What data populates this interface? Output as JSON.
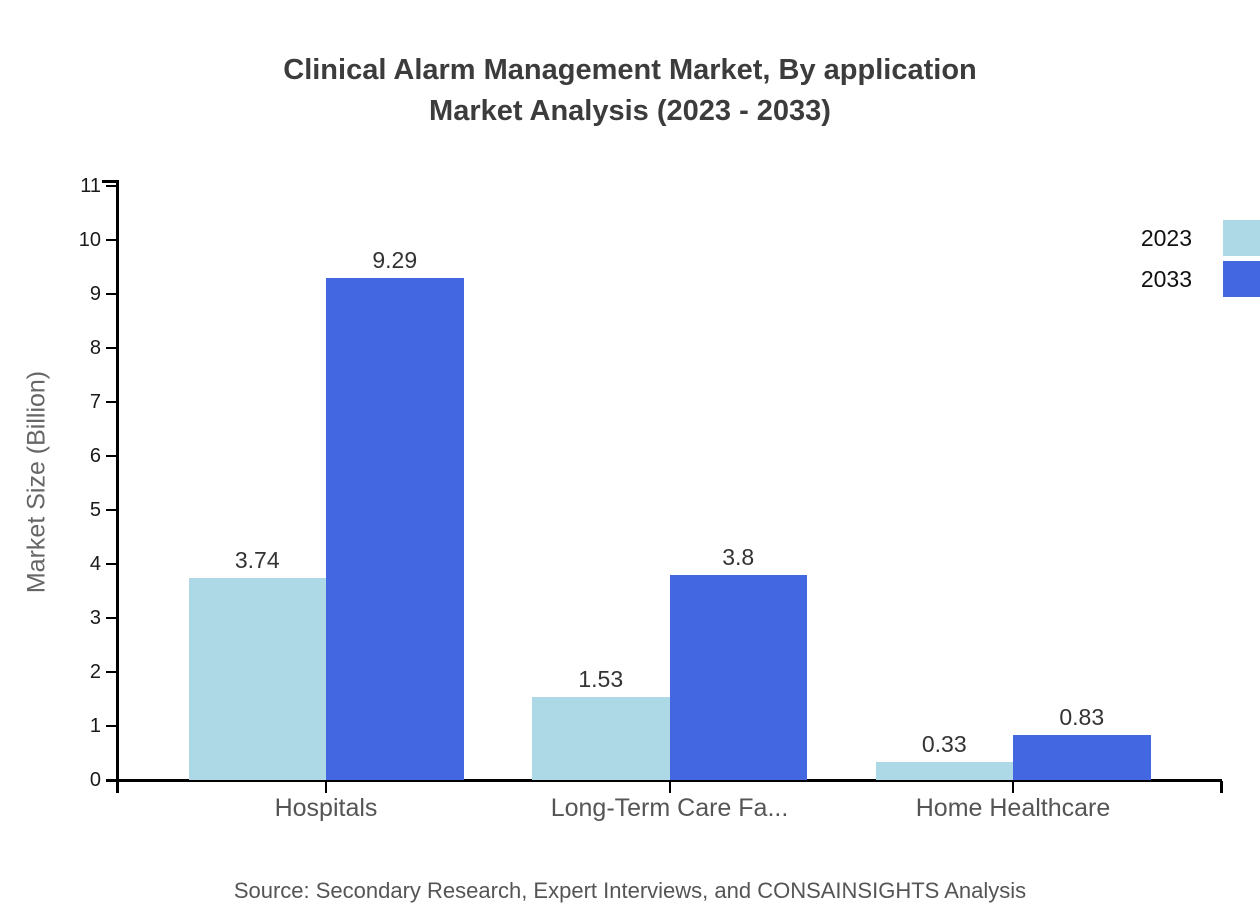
{
  "title": {
    "line1": "Clinical Alarm Management Market, By application",
    "line2": "Market Analysis (2023 - 2033)"
  },
  "y_axis": {
    "label": "Market Size (Billion)"
  },
  "legend": {
    "position": "top-right",
    "items": [
      {
        "label": "2023",
        "color": "#ADD8E6"
      },
      {
        "label": "2033",
        "color": "#4367E0"
      }
    ]
  },
  "source": "Source: Secondary Research, Expert Interviews, and CONSAINSIGHTS Analysis",
  "chart_data": {
    "type": "bar",
    "title": "Clinical Alarm Management Market, By application Market Analysis (2023 - 2033)",
    "categories": [
      "Hospitals",
      "Long-Term Care Fa...",
      "Home Healthcare"
    ],
    "series": [
      {
        "name": "2023",
        "color": "#ADD8E6",
        "values": [
          3.74,
          1.53,
          0.33
        ]
      },
      {
        "name": "2033",
        "color": "#4367E0",
        "values": [
          9.29,
          3.8,
          0.83
        ]
      }
    ],
    "xlabel": "",
    "ylabel": "Market Size (Billion)",
    "ylim": [
      0,
      11
    ],
    "y_ticks": [
      0,
      1,
      2,
      3,
      4,
      5,
      6,
      7,
      8,
      9,
      10,
      11
    ],
    "grid": false,
    "legend_position": "top-right"
  }
}
